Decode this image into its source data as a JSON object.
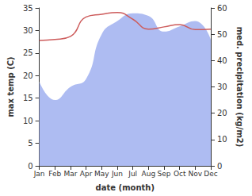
{
  "chart_data": {
    "type": "line",
    "x_label": "date (month)",
    "y_label": "max temp (C)",
    "y2_label": "med. precipitation (kg/m2)",
    "categories": [
      "Jan",
      "Feb",
      "Mar",
      "Apr",
      "May",
      "Jun",
      "Jul",
      "Aug",
      "Sep",
      "Oct",
      "Nov",
      "Dec"
    ],
    "ylim": [
      0,
      35
    ],
    "yticks": [
      0,
      5,
      10,
      15,
      20,
      25,
      30,
      35
    ],
    "y2lim": [
      0,
      60
    ],
    "y2ticks": [
      0,
      10,
      20,
      30,
      40,
      50,
      60
    ],
    "grid": false,
    "series": [
      {
        "type": "area",
        "axis": "y2",
        "color": "#aebcf2",
        "values": [
          32,
          25,
          30,
          33,
          50,
          55,
          58,
          57,
          51,
          53,
          55,
          48
        ]
      },
      {
        "type": "line",
        "axis": "y",
        "color": "#cd5c5c",
        "values": [
          27.8,
          28,
          28.7,
          33,
          33.6,
          34,
          32.5,
          30.3,
          30.8,
          31.3,
          30.2,
          30.3
        ]
      }
    ]
  }
}
